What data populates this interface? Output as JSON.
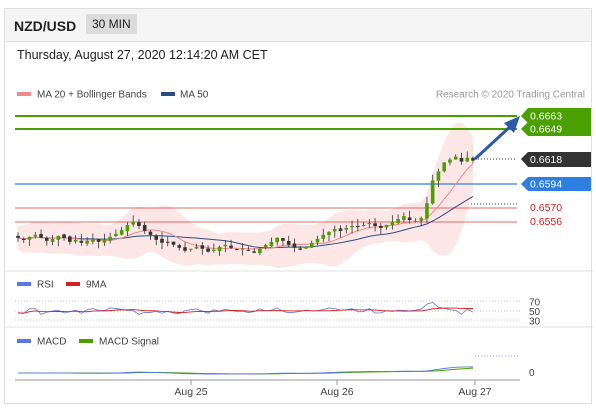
{
  "header": {
    "symbol": "NZD/USD",
    "interval": "30 MIN"
  },
  "datetime": "Thursday, August 27, 2020 12:14:20 AM CET",
  "legend": {
    "ma20_label": "MA 20 + Bollinger Bands",
    "ma50_label": "MA 50",
    "credit": "Research © 2020 Trading Central"
  },
  "levels": {
    "target_high": "0.6663",
    "target_low": "0.6649",
    "current": "0.6618",
    "pivot": "0.6594",
    "support1": "0.6570",
    "support2": "0.6556"
  },
  "rsi": {
    "label": "RSI",
    "ma_label": "9MA",
    "levels": [
      "70",
      "50",
      "30"
    ]
  },
  "macd": {
    "label": "MACD",
    "signal_label": "MACD Signal",
    "zero_label": "0"
  },
  "xaxis": {
    "labels": [
      "Aug 25",
      "Aug 26",
      "Aug 27"
    ]
  },
  "colors": {
    "green": "#4aa000",
    "blue": "#2f7fe0",
    "red": "#e23a3a",
    "dark": "#333333",
    "ma20": "#f08a8a",
    "ma50": "#2a4d8a",
    "band": "#fde6e6",
    "rsi": "#5b77e6",
    "rsi_ma": "#d91e1e",
    "macd": "#5b77e6",
    "macd_signal": "#4aa000",
    "arrow": "#2a5aa8"
  },
  "chart_data": {
    "type": "candlestick",
    "symbol": "NZD/USD",
    "interval": "30 MIN",
    "x_labels": [
      "Aug 25",
      "Aug 26",
      "Aug 27"
    ],
    "price_levels": [
      0.6663,
      0.6649,
      0.6618,
      0.6594,
      0.657,
      0.6556
    ],
    "price_path": [
      0.654,
      0.6538,
      0.6541,
      0.6543,
      0.654,
      0.6537,
      0.6539,
      0.6542,
      0.654,
      0.6536,
      0.6538,
      0.6535,
      0.6537,
      0.6539,
      0.6536,
      0.6538,
      0.6541,
      0.6544,
      0.6548,
      0.6553,
      0.6556,
      0.6552,
      0.6547,
      0.6543,
      0.6538,
      0.6535,
      0.6536,
      0.6533,
      0.653,
      0.6527,
      0.6529,
      0.6531,
      0.6529,
      0.6526,
      0.6528,
      0.6531,
      0.6533,
      0.653,
      0.6528,
      0.6529,
      0.6527,
      0.6525,
      0.6529,
      0.6533,
      0.6536,
      0.654,
      0.6537,
      0.6533,
      0.653,
      0.6528,
      0.6531,
      0.6535,
      0.6539,
      0.6543,
      0.6546,
      0.6549,
      0.6547,
      0.655,
      0.6552,
      0.6551,
      0.6553,
      0.6555,
      0.6552,
      0.655,
      0.6553,
      0.6556,
      0.6559,
      0.6562,
      0.6558,
      0.6557,
      0.656,
      0.6575,
      0.6598,
      0.6607,
      0.6616,
      0.6619,
      0.6622,
      0.6617,
      0.6621,
      0.6618
    ]
  }
}
